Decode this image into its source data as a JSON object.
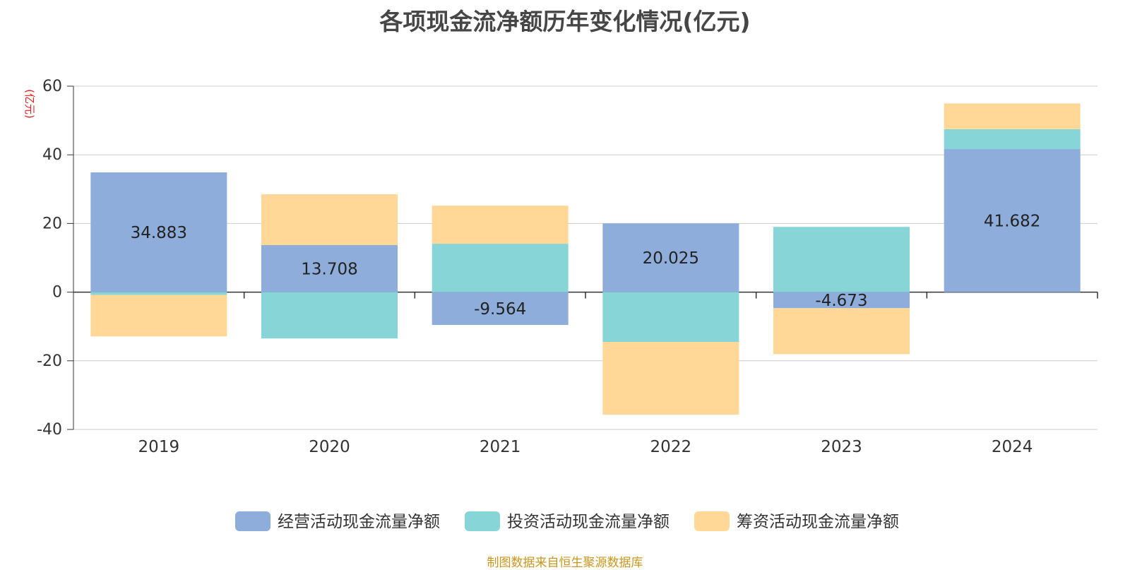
{
  "title": "各项现金流净额历年变化情况(亿元)",
  "unit_label": "(亿元)",
  "source": "制图数据来自恒生聚源数据库",
  "colors": {
    "operating": "#8eadda",
    "investing": "#88d5d8",
    "financing": "#ffd898",
    "unit_label": "#e02020",
    "source": "#c8961e",
    "grid": "#cccccc",
    "axis": "#333333"
  },
  "chart_data": {
    "type": "bar",
    "stacked": true,
    "categories": [
      "2019",
      "2020",
      "2021",
      "2022",
      "2023",
      "2024"
    ],
    "ylim": [
      -40,
      60
    ],
    "yticks": [
      60,
      40,
      20,
      0,
      -20,
      -40
    ],
    "grid": true,
    "legend_position": "bottom",
    "series": [
      {
        "name": "经营活动现金流量净额",
        "color_key": "operating",
        "values": [
          34.883,
          13.708,
          -9.564,
          20.025,
          -4.673,
          41.682
        ],
        "labels": [
          "34.883",
          "13.708",
          "-9.564",
          "20.025",
          "-4.673",
          "41.682"
        ]
      },
      {
        "name": "投资活动现金流量净额",
        "color_key": "investing",
        "values": [
          -0.8,
          -13.5,
          14.1,
          -14.5,
          19.0,
          5.8
        ]
      },
      {
        "name": "筹资活动现金流量净额",
        "color_key": "financing",
        "values": [
          -12.1,
          14.8,
          11.1,
          -21.2,
          -13.4,
          7.5
        ]
      }
    ]
  }
}
